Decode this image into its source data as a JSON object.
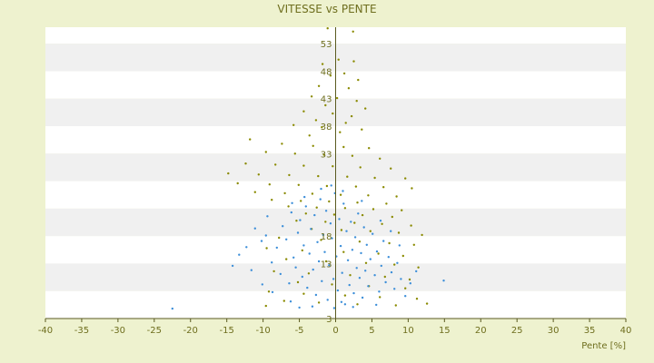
{
  "chart_data": {
    "type": "scatter",
    "title": "VITESSE vs PENTE",
    "xlabel": "Pente [%]",
    "ylabel": "",
    "xlim": [
      -40,
      40
    ],
    "ylim": [
      3,
      56
    ],
    "x_ticks": [
      -40,
      -35,
      -30,
      -25,
      -20,
      -15,
      -10,
      -5,
      0,
      5,
      10,
      15,
      20,
      25,
      30,
      35,
      40
    ],
    "y_ticks": [
      3,
      8,
      13,
      18,
      23,
      28,
      33,
      38,
      43,
      48,
      53
    ],
    "y_tick_labels": [
      "3",
      "",
      "13",
      "18",
      "",
      "",
      "33",
      "38",
      "43",
      "48",
      "53"
    ],
    "grid": "alternating horizontal bands",
    "legend": "none",
    "series": [
      {
        "color": "#8a8a00",
        "points": [
          [
            2.4,
            55.2
          ],
          [
            -1.1,
            55.8
          ],
          [
            0.4,
            50.1
          ],
          [
            -1.8,
            49.3
          ],
          [
            2.5,
            49.8
          ],
          [
            1.2,
            47.6
          ],
          [
            -0.7,
            47.2
          ],
          [
            3.1,
            46.4
          ],
          [
            -2.3,
            45.3
          ],
          [
            1.8,
            44.9
          ],
          [
            -3.3,
            43.4
          ],
          [
            0.2,
            43.1
          ],
          [
            2.9,
            42.6
          ],
          [
            -1.4,
            41.8
          ],
          [
            4.1,
            41.2
          ],
          [
            -4.4,
            40.7
          ],
          [
            -0.4,
            40.3
          ],
          [
            2.2,
            39.8
          ],
          [
            -2.7,
            39.1
          ],
          [
            1.4,
            38.6
          ],
          [
            -5.8,
            38.2
          ],
          [
            -1.9,
            37.8
          ],
          [
            3.6,
            37.4
          ],
          [
            0.6,
            36.9
          ],
          [
            -3.6,
            36.3
          ],
          [
            -11.8,
            35.6
          ],
          [
            -7.4,
            34.8
          ],
          [
            -3.1,
            34.4
          ],
          [
            1.1,
            34.2
          ],
          [
            4.6,
            34.0
          ],
          [
            -9.6,
            33.3
          ],
          [
            -5.6,
            33.0
          ],
          [
            -1.6,
            32.8
          ],
          [
            2.3,
            32.6
          ],
          [
            6.1,
            32.1
          ],
          [
            -12.4,
            31.2
          ],
          [
            -8.3,
            31.0
          ],
          [
            -4.4,
            30.8
          ],
          [
            -0.4,
            30.7
          ],
          [
            3.4,
            30.5
          ],
          [
            7.6,
            30.3
          ],
          [
            -14.8,
            29.4
          ],
          [
            -10.6,
            29.2
          ],
          [
            -6.4,
            29.1
          ],
          [
            -2.4,
            28.9
          ],
          [
            1.6,
            28.8
          ],
          [
            5.4,
            28.6
          ],
          [
            9.6,
            28.5
          ],
          [
            -13.5,
            27.6
          ],
          [
            -9.1,
            27.4
          ],
          [
            -5.1,
            27.3
          ],
          [
            -1.2,
            27.1
          ],
          [
            2.8,
            27.0
          ],
          [
            6.6,
            26.9
          ],
          [
            10.5,
            26.7
          ],
          [
            -11.1,
            26.0
          ],
          [
            -7.0,
            25.8
          ],
          [
            -3.2,
            25.7
          ],
          [
            0.7,
            25.5
          ],
          [
            4.5,
            25.4
          ],
          [
            8.4,
            25.2
          ],
          [
            -8.8,
            24.6
          ],
          [
            -4.8,
            24.4
          ],
          [
            -0.9,
            24.3
          ],
          [
            3.0,
            24.1
          ],
          [
            7.0,
            23.9
          ],
          [
            -6.5,
            23.4
          ],
          [
            -2.6,
            23.2
          ],
          [
            1.3,
            23.1
          ],
          [
            5.2,
            22.9
          ],
          [
            9.1,
            22.7
          ],
          [
            -4.1,
            22.1
          ],
          [
            -0.2,
            21.9
          ],
          [
            3.7,
            21.8
          ],
          [
            7.8,
            21.5
          ],
          [
            -5.4,
            20.8
          ],
          [
            -1.4,
            20.6
          ],
          [
            2.6,
            20.4
          ],
          [
            6.4,
            20.2
          ],
          [
            10.4,
            19.9
          ],
          [
            -3.3,
            19.3
          ],
          [
            0.8,
            19.1
          ],
          [
            4.8,
            18.9
          ],
          [
            8.7,
            18.6
          ],
          [
            11.9,
            18.2
          ],
          [
            -7.8,
            17.7
          ],
          [
            -2.0,
            17.3
          ],
          [
            3.3,
            17.0
          ],
          [
            7.4,
            16.7
          ],
          [
            10.8,
            16.4
          ],
          [
            -9.5,
            15.8
          ],
          [
            -4.6,
            15.4
          ],
          [
            1.1,
            15.1
          ],
          [
            5.9,
            14.8
          ],
          [
            9.3,
            14.4
          ],
          [
            -6.8,
            13.8
          ],
          [
            -1.3,
            13.4
          ],
          [
            4.2,
            13.1
          ],
          [
            8.1,
            12.8
          ],
          [
            11.4,
            12.3
          ],
          [
            -8.5,
            11.6
          ],
          [
            -3.7,
            11.2
          ],
          [
            2.0,
            10.9
          ],
          [
            6.8,
            10.6
          ],
          [
            10.2,
            10.1
          ],
          [
            -5.2,
            9.6
          ],
          [
            -0.5,
            9.2
          ],
          [
            4.6,
            8.9
          ],
          [
            9.6,
            8.5
          ],
          [
            -9.2,
            7.9
          ],
          [
            -4.4,
            7.5
          ],
          [
            1.3,
            7.2
          ],
          [
            6.1,
            6.9
          ],
          [
            11.2,
            6.6
          ],
          [
            -7.1,
            6.2
          ],
          [
            -2.3,
            5.9
          ],
          [
            3.0,
            5.6
          ],
          [
            8.3,
            5.4
          ],
          [
            12.6,
            5.7
          ],
          [
            -9.6,
            5.3
          ]
        ]
      },
      {
        "color": "#3d8fd9",
        "points": [
          [
            -22.5,
            4.8
          ],
          [
            14.9,
            9.9
          ],
          [
            -14.2,
            12.6
          ],
          [
            -13.3,
            14.6
          ],
          [
            -11.1,
            19.4
          ],
          [
            -10.2,
            17.1
          ],
          [
            -9.4,
            21.6
          ],
          [
            -8.8,
            13.2
          ],
          [
            -8.1,
            15.9
          ],
          [
            -7.6,
            11.1
          ],
          [
            -7.3,
            19.8
          ],
          [
            -6.8,
            17.4
          ],
          [
            -6.4,
            9.4
          ],
          [
            -6.1,
            22.3
          ],
          [
            -5.8,
            14.1
          ],
          [
            -5.5,
            12.3
          ],
          [
            -5.2,
            18.6
          ],
          [
            -4.9,
            20.9
          ],
          [
            -4.6,
            10.6
          ],
          [
            -4.4,
            16.3
          ],
          [
            -4.1,
            23.4
          ],
          [
            -3.9,
            8.6
          ],
          [
            -3.6,
            14.8
          ],
          [
            -3.4,
            19.3
          ],
          [
            -3.1,
            11.9
          ],
          [
            -2.9,
            21.8
          ],
          [
            -2.7,
            7.3
          ],
          [
            -2.5,
            16.9
          ],
          [
            -2.3,
            13.4
          ],
          [
            -2.1,
            24.7
          ],
          [
            -1.9,
            9.8
          ],
          [
            -1.7,
            18.2
          ],
          [
            -1.5,
            15.1
          ],
          [
            -1.3,
            22.6
          ],
          [
            -1.1,
            6.4
          ],
          [
            -0.9,
            12.7
          ],
          [
            -0.7,
            20.3
          ],
          [
            -0.5,
            17.6
          ],
          [
            -0.3,
            10.2
          ],
          [
            -0.1,
            25.8
          ],
          [
            0.1,
            14.3
          ],
          [
            0.3,
            8.1
          ],
          [
            0.5,
            21.1
          ],
          [
            0.7,
            16.2
          ],
          [
            0.9,
            11.3
          ],
          [
            1.1,
            23.9
          ],
          [
            1.3,
            5.6
          ],
          [
            1.5,
            18.9
          ],
          [
            1.7,
            13.6
          ],
          [
            1.9,
            9.1
          ],
          [
            2.1,
            20.6
          ],
          [
            2.3,
            15.5
          ],
          [
            2.5,
            7.6
          ],
          [
            2.7,
            17.8
          ],
          [
            2.9,
            12.2
          ],
          [
            3.1,
            22.1
          ],
          [
            3.3,
            10.4
          ],
          [
            3.5,
            14.9
          ],
          [
            3.7,
            6.8
          ],
          [
            3.9,
            19.6
          ],
          [
            4.1,
            11.7
          ],
          [
            4.3,
            16.4
          ],
          [
            4.5,
            8.9
          ],
          [
            4.8,
            13.8
          ],
          [
            5.1,
            18.4
          ],
          [
            5.4,
            10.9
          ],
          [
            5.7,
            15.2
          ],
          [
            6.0,
            7.9
          ],
          [
            6.3,
            12.6
          ],
          [
            6.6,
            17.1
          ],
          [
            6.9,
            9.6
          ],
          [
            7.3,
            14.2
          ],
          [
            7.7,
            11.4
          ],
          [
            8.1,
            8.4
          ],
          [
            8.5,
            13.1
          ],
          [
            9.0,
            10.2
          ],
          [
            9.6,
            7.1
          ],
          [
            10.3,
            9.4
          ],
          [
            11.1,
            11.6
          ],
          [
            -0.2,
            4.9
          ],
          [
            -3.2,
            5.2
          ],
          [
            2.4,
            5.1
          ],
          [
            5.6,
            5.5
          ],
          [
            -6.2,
            6.1
          ],
          [
            -8.7,
            7.8
          ],
          [
            -10.1,
            9.2
          ],
          [
            -11.6,
            11.8
          ],
          [
            -12.3,
            16.0
          ],
          [
            -2.0,
            26.6
          ],
          [
            1.0,
            26.2
          ],
          [
            -4.3,
            25.1
          ],
          [
            3.6,
            24.4
          ],
          [
            -6.0,
            24.0
          ],
          [
            -0.6,
            27.2
          ],
          [
            6.2,
            20.8
          ],
          [
            7.6,
            18.9
          ],
          [
            8.8,
            16.3
          ],
          [
            -9.6,
            18.1
          ],
          [
            -5.0,
            5.0
          ],
          [
            0.8,
            6.0
          ]
        ]
      }
    ]
  }
}
